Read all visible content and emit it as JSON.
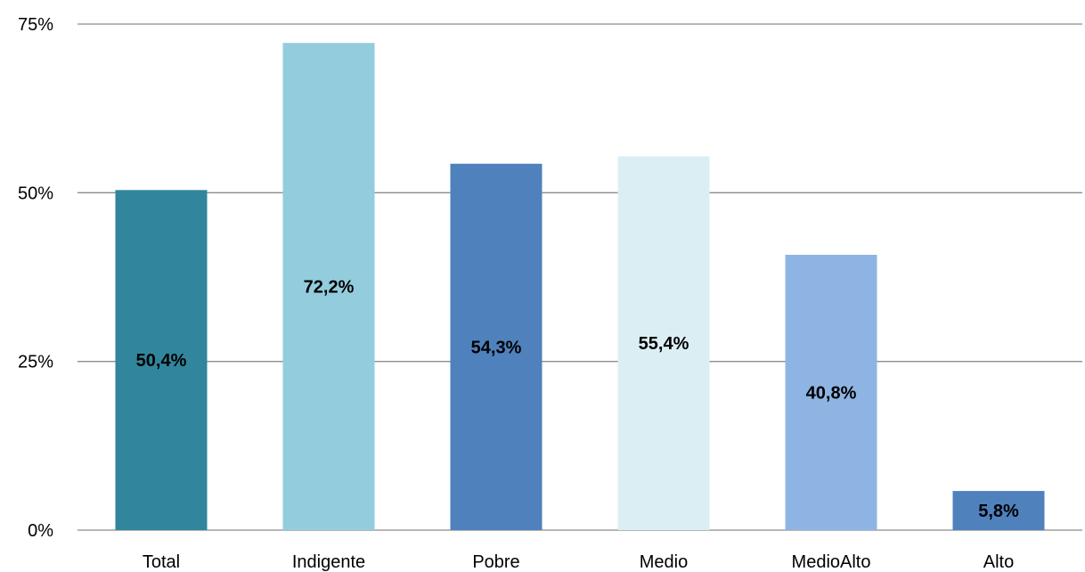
{
  "chart_data": {
    "type": "bar",
    "categories": [
      "Total",
      "Indigente",
      "Pobre",
      "Medio",
      "MedioAlto",
      "Alto"
    ],
    "values": [
      50.4,
      72.2,
      54.3,
      55.4,
      40.8,
      5.8
    ],
    "data_labels": [
      "50,4%",
      "72,2%",
      "54,3%",
      "55,4%",
      "40,8%",
      "5,8%"
    ],
    "colors": [
      "#31859c",
      "#93cddd",
      "#4f81bd",
      "#dbeef4",
      "#8eb4e3",
      "#4f81bd"
    ],
    "y_ticks": [
      0,
      25,
      50,
      75
    ],
    "y_tick_labels": [
      "0%",
      "25%",
      "50%",
      "75%"
    ],
    "ylim": [
      0,
      75
    ],
    "title": "",
    "xlabel": "",
    "ylabel": "",
    "grid": true,
    "legend": "none"
  }
}
